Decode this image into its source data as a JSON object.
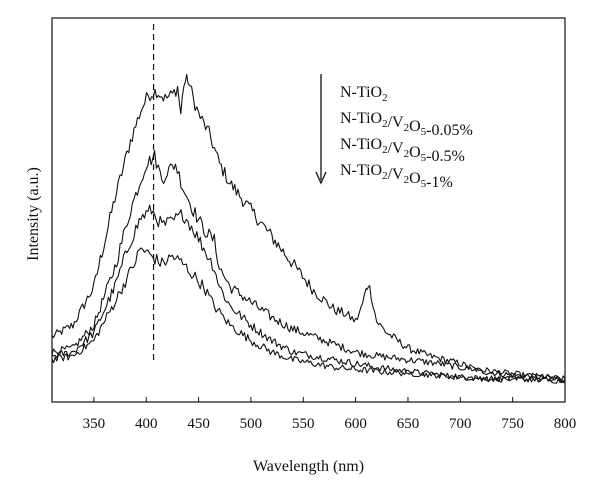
{
  "chart_data": {
    "type": "line",
    "xlabel": "Wavelength (nm)",
    "ylabel": "Intensity (a.u.)",
    "xlim": [
      310,
      800
    ],
    "ylim": [
      0,
      1.0
    ],
    "x_ticks": [
      350,
      400,
      450,
      500,
      550,
      600,
      650,
      700,
      750,
      800
    ],
    "y_tick_labels_shown": false,
    "reference_line": {
      "x": 407,
      "style": "dashed"
    },
    "legend": {
      "placement": "top-right",
      "arrow": "down",
      "entries": [
        "N-TiO2",
        "N-TiO2/V2O5-0.05%",
        "N-TiO2/V2O5-0.5%",
        "N-TiO2/V2O5-1%"
      ]
    },
    "series": [
      {
        "name": "N-TiO2",
        "x": [
          310,
          330,
          350,
          370,
          385,
          395,
          402,
          410,
          418,
          425,
          430,
          433,
          436,
          440,
          445,
          450,
          460,
          470,
          480,
          500,
          520,
          540,
          560,
          580,
          590,
          600,
          605,
          610,
          612,
          615,
          620,
          630,
          650,
          670,
          700,
          720,
          750,
          780,
          800
        ],
        "y": [
          0.17,
          0.2,
          0.3,
          0.53,
          0.68,
          0.76,
          0.8,
          0.81,
          0.79,
          0.8,
          0.82,
          0.75,
          0.83,
          0.84,
          0.79,
          0.75,
          0.7,
          0.62,
          0.57,
          0.5,
          0.43,
          0.36,
          0.29,
          0.24,
          0.23,
          0.21,
          0.24,
          0.29,
          0.31,
          0.28,
          0.21,
          0.18,
          0.14,
          0.12,
          0.1,
          0.08,
          0.07,
          0.065,
          0.06
        ]
      },
      {
        "name": "N-TiO2/V2O5-0.05%",
        "x": [
          310,
          330,
          350,
          370,
          385,
          395,
          400,
          408,
          415,
          420,
          428,
          435,
          445,
          455,
          465,
          470,
          480,
          500,
          520,
          540,
          560,
          580,
          600,
          620,
          650,
          680,
          700,
          730,
          760,
          800
        ],
        "y": [
          0.13,
          0.14,
          0.2,
          0.35,
          0.5,
          0.58,
          0.62,
          0.64,
          0.58,
          0.6,
          0.62,
          0.56,
          0.5,
          0.45,
          0.42,
          0.35,
          0.3,
          0.26,
          0.22,
          0.19,
          0.17,
          0.15,
          0.13,
          0.12,
          0.11,
          0.1,
          0.09,
          0.08,
          0.07,
          0.06
        ]
      },
      {
        "name": "N-TiO2/V2O5-0.5%",
        "x": [
          310,
          330,
          350,
          370,
          385,
          395,
          405,
          415,
          425,
          435,
          445,
          455,
          465,
          470,
          480,
          500,
          520,
          540,
          560,
          580,
          600,
          620,
          650,
          680,
          700,
          730,
          760,
          800
        ],
        "y": [
          0.12,
          0.13,
          0.18,
          0.3,
          0.42,
          0.48,
          0.5,
          0.46,
          0.47,
          0.49,
          0.45,
          0.4,
          0.35,
          0.3,
          0.25,
          0.2,
          0.16,
          0.13,
          0.12,
          0.11,
          0.1,
          0.09,
          0.08,
          0.07,
          0.065,
          0.06,
          0.06,
          0.055
        ]
      },
      {
        "name": "N-TiO2/V2O5-1%",
        "x": [
          310,
          330,
          350,
          370,
          385,
          395,
          405,
          415,
          425,
          435,
          445,
          455,
          465,
          480,
          500,
          520,
          540,
          560,
          580,
          600,
          620,
          650,
          680,
          700,
          730,
          760,
          800
        ],
        "y": [
          0.11,
          0.12,
          0.16,
          0.26,
          0.34,
          0.4,
          0.38,
          0.36,
          0.38,
          0.36,
          0.33,
          0.3,
          0.25,
          0.2,
          0.16,
          0.13,
          0.11,
          0.1,
          0.09,
          0.085,
          0.08,
          0.075,
          0.07,
          0.065,
          0.06,
          0.06,
          0.055
        ]
      }
    ]
  }
}
